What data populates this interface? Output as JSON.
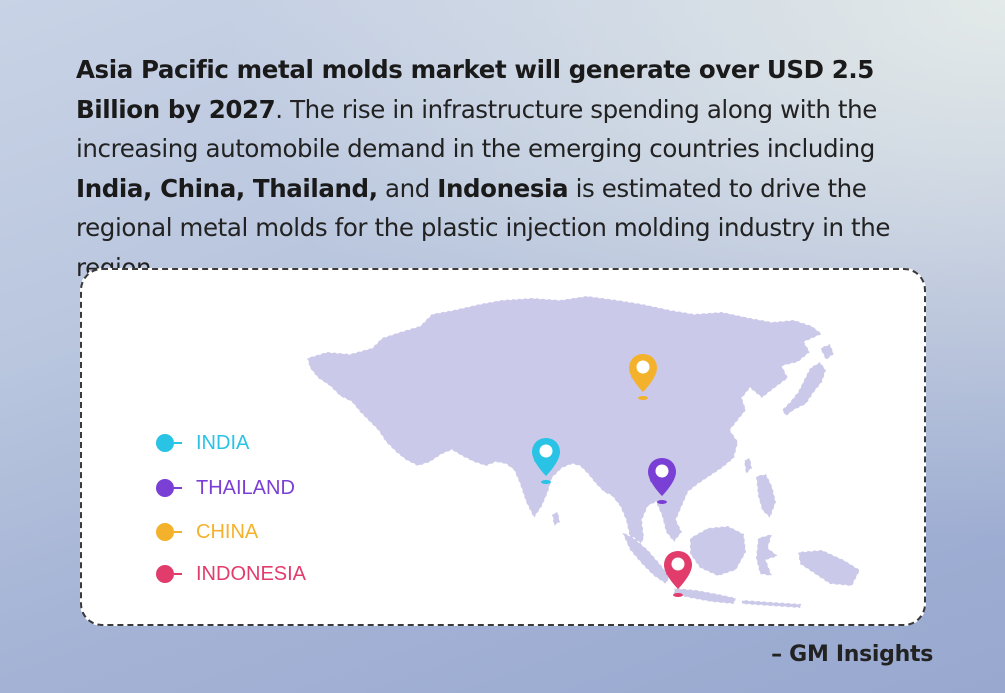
{
  "headline": {
    "bold_intro": "Asia Pacific metal molds market will generate over USD 2.5 Billion by 2027",
    "text_1": ". The rise in infrastructure spending along with the increasing automobile demand in the emerging countries including ",
    "bold_countries": "India, China, Thailand,",
    "text_2": " and ",
    "bold_indonesia": "Indonesia",
    "text_3": " is estimated to drive the regional metal molds for the plastic injection molding industry in the region."
  },
  "map": {
    "land_color": "#cbc9e9",
    "border_color": "#ffffff",
    "legend": [
      {
        "label": "INDIA",
        "color": "#29c3e6"
      },
      {
        "label": "THAILAND",
        "color": "#7a3fd4"
      },
      {
        "label": "CHINA",
        "color": "#f4b22c"
      },
      {
        "label": "INDONESIA",
        "color": "#e23c6c"
      }
    ],
    "pins": [
      {
        "country": "China",
        "color": "#f4b22c",
        "icon": "map-pin-icon"
      },
      {
        "country": "India",
        "color": "#29c3e6",
        "icon": "map-pin-icon"
      },
      {
        "country": "Thailand",
        "color": "#7a3fd4",
        "icon": "map-pin-icon"
      },
      {
        "country": "Indonesia",
        "color": "#e23c6c",
        "icon": "map-pin-icon"
      }
    ]
  },
  "source": "– GM Insights"
}
